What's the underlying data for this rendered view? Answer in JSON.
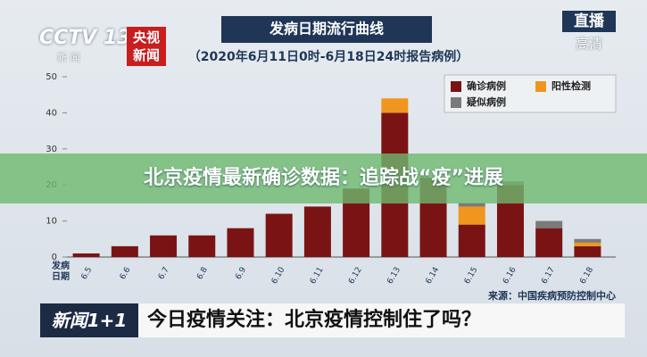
{
  "chart_data": {
    "type": "bar",
    "stacked": true,
    "title": "发病日期流行曲线",
    "subtitle": "（2020年6月11日0时-6月18日24时报告病例）",
    "x_label": "发病日期",
    "source": "来源：中国疾病预防控制中心",
    "categories": [
      "6.5",
      "6.6",
      "6.7",
      "6.8",
      "6.9",
      "6.10",
      "6.11",
      "6.12",
      "6.13",
      "6.14",
      "6.15",
      "6.16",
      "6.17",
      "6.18"
    ],
    "series": [
      {
        "name": "确诊病例",
        "color": "#7a1414",
        "values": [
          1,
          3,
          6,
          6,
          8,
          12,
          14,
          19,
          40,
          22,
          9,
          20,
          8,
          3
        ]
      },
      {
        "name": "阳性检测",
        "color": "#f0961e",
        "values": [
          null,
          null,
          null,
          null,
          null,
          null,
          null,
          null,
          4,
          null,
          5,
          null,
          null,
          1
        ]
      },
      {
        "name": "疑似病例",
        "color": "#7a7a7a",
        "values": [
          null,
          null,
          null,
          null,
          null,
          null,
          null,
          null,
          null,
          null,
          1,
          1,
          2,
          1
        ]
      }
    ],
    "ylim": [
      0,
      50
    ],
    "yticks": [
      0,
      10,
      20,
      30,
      40,
      50
    ],
    "grid": false,
    "legend": "top-right"
  },
  "broadcast": {
    "channel": "CCTV 13",
    "channel_sub": "新 闻",
    "app_logo": "央视新闻",
    "live": "直播",
    "hd": "高清",
    "headline": "北京疫情最新确诊数据：追踪战“疫”进展",
    "program": "新闻1+1",
    "caption": "今日疫情关注：北京疫情控制住了吗？"
  }
}
